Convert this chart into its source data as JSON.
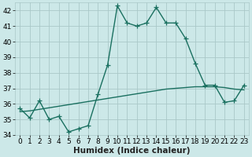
{
  "xlabel": "Humidex (Indice chaleur)",
  "x": [
    0,
    1,
    2,
    3,
    4,
    5,
    6,
    7,
    8,
    9,
    10,
    11,
    12,
    13,
    14,
    15,
    16,
    17,
    18,
    19,
    20,
    21,
    22,
    23
  ],
  "line1": [
    35.7,
    35.1,
    36.2,
    35.0,
    35.2,
    34.2,
    34.4,
    34.6,
    36.6,
    38.5,
    42.3,
    41.2,
    41.0,
    41.2,
    42.2,
    41.2,
    41.2,
    40.2,
    38.6,
    37.2,
    37.2,
    36.1,
    36.2,
    37.2
  ],
  "line2": [
    35.5,
    35.55,
    35.65,
    35.75,
    35.85,
    35.95,
    36.05,
    36.15,
    36.25,
    36.35,
    36.45,
    36.55,
    36.65,
    36.75,
    36.85,
    36.95,
    37.0,
    37.05,
    37.1,
    37.1,
    37.1,
    37.05,
    36.95,
    36.9
  ],
  "line_color": "#1a7060",
  "bg_color": "#cce8e8",
  "grid_color": "#aac8c8",
  "ylim": [
    34,
    42.5
  ],
  "yticks": [
    34,
    35,
    36,
    37,
    38,
    39,
    40,
    41,
    42
  ],
  "xlim": [
    -0.5,
    23.5
  ],
  "xticks": [
    0,
    1,
    2,
    3,
    4,
    5,
    6,
    7,
    8,
    9,
    10,
    11,
    12,
    13,
    14,
    15,
    16,
    17,
    18,
    19,
    20,
    21,
    22,
    23
  ],
  "marker": "+",
  "linewidth": 1.0,
  "markersize": 4,
  "tick_fontsize": 6.5,
  "xlabel_fontsize": 7.5
}
